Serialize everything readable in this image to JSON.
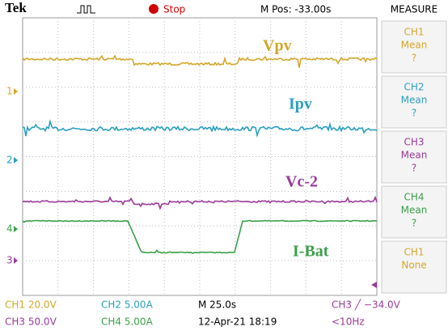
{
  "header": {
    "brand": "Tek",
    "status": "Stop",
    "position": "M Pos: -33.00s",
    "panel": "MEASURE"
  },
  "trace_labels": [
    "Vpv",
    "Ipv",
    "Vc-2",
    "I-Bat"
  ],
  "channel_markers": [
    "1",
    "2",
    "4",
    "3"
  ],
  "measurements": [
    {
      "channel": "CH1",
      "type": "Mean",
      "value": "?"
    },
    {
      "channel": "CH2",
      "type": "Mean",
      "value": "?"
    },
    {
      "channel": "CH3",
      "type": "Mean",
      "value": "?"
    },
    {
      "channel": "CH4",
      "type": "Mean",
      "value": "?"
    },
    {
      "channel": "CH1",
      "type": "None"
    }
  ],
  "footer": {
    "row1": [
      "CH1  20.0V",
      "CH2  5.00A",
      "M 25.0s",
      "CH3 ╱ −34.0V"
    ],
    "row2": [
      "CH3  50.0V",
      "CH4  5.00A",
      "12-Apr-21 18:19",
      "<10Hz"
    ]
  }
}
